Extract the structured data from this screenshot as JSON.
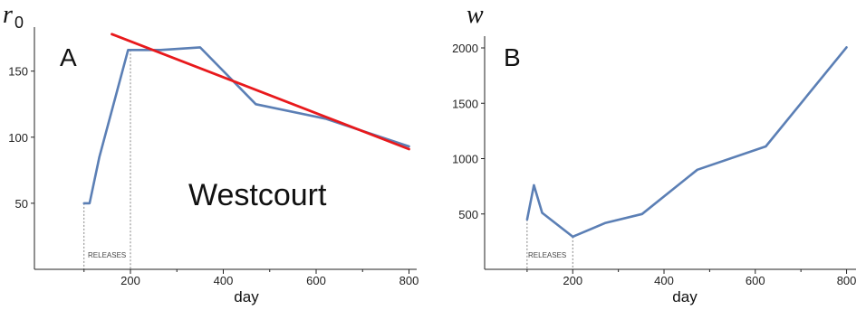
{
  "chart_data": [
    {
      "type": "line",
      "panel_label": "A",
      "ylabel": "r",
      "ylabel_subscript": "0",
      "xlabel": "day",
      "annotation": "Westcourt",
      "marker_label": "RELEASES",
      "xlim": [
        0,
        810
      ],
      "ylim": [
        0,
        175
      ],
      "x_ticks": [
        200,
        400,
        600,
        800
      ],
      "y_ticks": [
        50,
        100,
        150
      ],
      "marker_x": [
        100,
        200
      ],
      "grid": false,
      "series": [
        {
          "color": "#5b7fb5",
          "x": [
            100,
            112,
            133,
            195,
            265,
            350,
            470,
            620,
            800
          ],
          "y": [
            50,
            50,
            85,
            166,
            166,
            168,
            125,
            114,
            93
          ]
        },
        {
          "color": "#e8191c",
          "x": [
            160,
            800
          ],
          "y": [
            178,
            91
          ]
        }
      ]
    },
    {
      "type": "line",
      "panel_label": "B",
      "ylabel": "w",
      "xlabel": "day",
      "marker_label": "RELEASES",
      "xlim": [
        0,
        810
      ],
      "ylim": [
        0,
        2100
      ],
      "x_ticks": [
        200,
        400,
        600,
        800
      ],
      "y_ticks": [
        500,
        1000,
        1500,
        2000
      ],
      "marker_x": [
        100,
        200
      ],
      "grid": false,
      "series": [
        {
          "color": "#5b7fb5",
          "x": [
            100,
            115,
            133,
            200,
            272,
            352,
            473,
            623,
            800
          ],
          "y": [
            450,
            760,
            510,
            295,
            420,
            500,
            900,
            1110,
            2005
          ]
        }
      ]
    }
  ]
}
